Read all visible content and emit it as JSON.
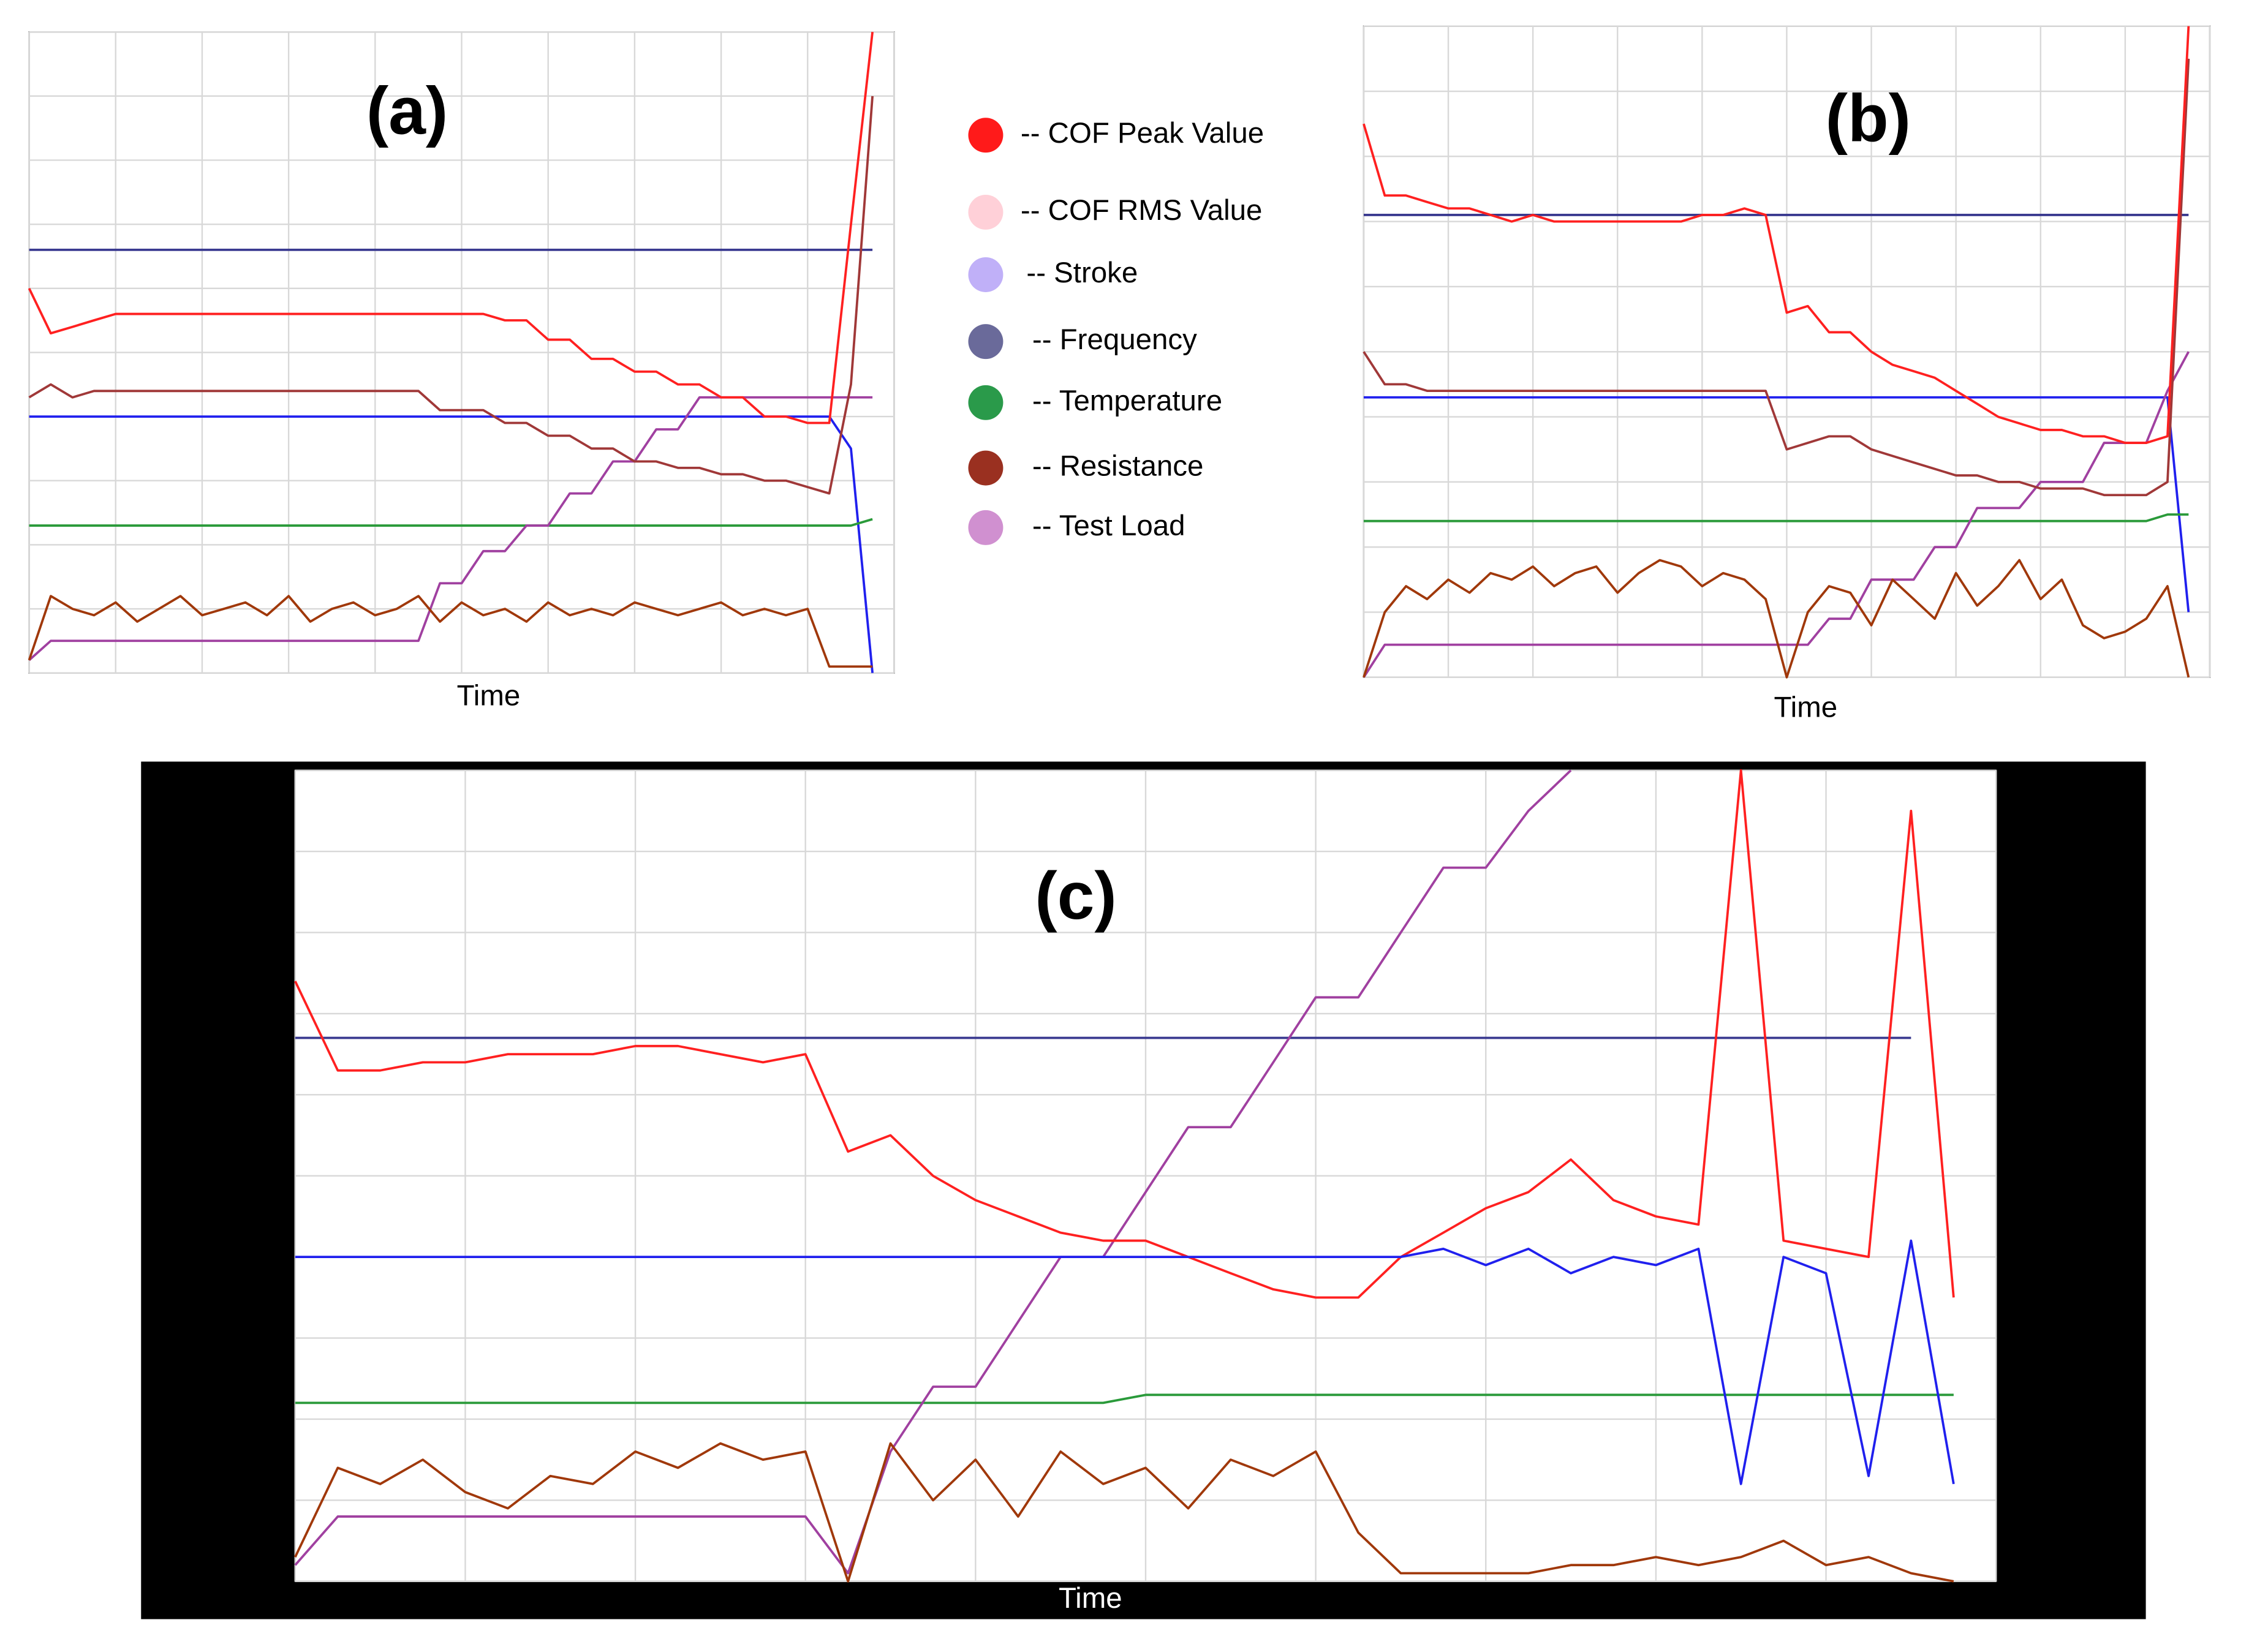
{
  "chart_data": [
    {
      "type": "line",
      "title": "(a)",
      "xlabel": "Time",
      "x": [
        0,
        2.5,
        5,
        7.5,
        10,
        12.5,
        15,
        17.5,
        20,
        22.5,
        25,
        27.5,
        30,
        32.5,
        35,
        37.5,
        40,
        42.5,
        45,
        47.5,
        50,
        52.5,
        55,
        57.5,
        60,
        62.5,
        65,
        67.5,
        70,
        72.5,
        75,
        77.5,
        80,
        82.5,
        85,
        87.5,
        90,
        92.5,
        95,
        97.5,
        100
      ],
      "xlim": [
        0,
        100
      ],
      "ylim": [
        0,
        100
      ],
      "xticks": [
        0,
        10,
        20,
        30,
        40,
        50,
        60,
        70,
        80,
        90,
        100
      ],
      "yticks": [
        0,
        10,
        20,
        30,
        40,
        50,
        60,
        70,
        80,
        90,
        100
      ],
      "grid": true,
      "series": [
        {
          "color": "#3a3a90",
          "values": [
            66,
            66,
            66,
            66,
            66,
            66,
            66,
            66,
            66,
            66,
            66,
            66,
            66,
            66,
            66,
            66,
            66,
            66,
            66,
            66,
            66,
            66,
            66,
            66,
            66,
            66,
            66,
            66,
            66,
            66,
            66,
            66,
            66,
            66,
            66,
            66,
            66,
            66,
            66,
            66,
            null
          ]
        },
        {
          "color": "#2020ee",
          "values": [
            40,
            40,
            40,
            40,
            40,
            40,
            40,
            40,
            40,
            40,
            40,
            40,
            40,
            40,
            40,
            40,
            40,
            40,
            40,
            40,
            40,
            40,
            40,
            40,
            40,
            40,
            40,
            40,
            40,
            40,
            40,
            40,
            40,
            40,
            40,
            40,
            40,
            40,
            35,
            0,
            null
          ]
        },
        {
          "color": "#2a9a3a",
          "values": [
            23,
            23,
            23,
            23,
            23,
            23,
            23,
            23,
            23,
            23,
            23,
            23,
            23,
            23,
            23,
            23,
            23,
            23,
            23,
            23,
            23,
            23,
            23,
            23,
            23,
            23,
            23,
            23,
            23,
            23,
            23,
            23,
            23,
            23,
            23,
            23,
            23,
            23,
            23,
            24,
            null
          ]
        },
        {
          "color": "#a040a0",
          "values": [
            2,
            5,
            5,
            5,
            5,
            5,
            5,
            5,
            5,
            5,
            5,
            5,
            5,
            5,
            5,
            5,
            5,
            5,
            5,
            14,
            14,
            19,
            19,
            23,
            23,
            28,
            28,
            33,
            33,
            38,
            38,
            43,
            43,
            43,
            43,
            43,
            43,
            43,
            43,
            43,
            null
          ]
        },
        {
          "color": "#a0380a",
          "values": [
            2,
            12,
            10,
            9,
            11,
            8,
            10,
            12,
            9,
            10,
            11,
            9,
            12,
            8,
            10,
            11,
            9,
            10,
            12,
            8,
            11,
            9,
            10,
            8,
            11,
            9,
            10,
            9,
            11,
            10,
            9,
            10,
            11,
            9,
            10,
            9,
            10,
            1,
            1,
            1,
            null
          ]
        },
        {
          "color": "#a03838",
          "values": [
            43,
            45,
            43,
            44,
            44,
            44,
            44,
            44,
            44,
            44,
            44,
            44,
            44,
            44,
            44,
            44,
            44,
            44,
            44,
            41,
            41,
            41,
            39,
            39,
            37,
            37,
            35,
            35,
            33,
            33,
            32,
            32,
            31,
            31,
            30,
            30,
            29,
            28,
            45,
            90,
            null
          ]
        },
        {
          "color": "#ff2020",
          "values": [
            60,
            53,
            54,
            55,
            56,
            56,
            56,
            56,
            56,
            56,
            56,
            56,
            56,
            56,
            56,
            56,
            56,
            56,
            56,
            56,
            56,
            56,
            55,
            55,
            52,
            52,
            49,
            49,
            47,
            47,
            45,
            45,
            43,
            43,
            40,
            40,
            39,
            39,
            70,
            100,
            null
          ]
        }
      ]
    },
    {
      "type": "line",
      "title": "(b)",
      "xlabel": "Time",
      "x": [
        0,
        2.5,
        5,
        7.5,
        10,
        12.5,
        15,
        17.5,
        20,
        22.5,
        25,
        27.5,
        30,
        32.5,
        35,
        37.5,
        40,
        42.5,
        45,
        47.5,
        50,
        52.5,
        55,
        57.5,
        60,
        62.5,
        65,
        67.5,
        70,
        72.5,
        75,
        77.5,
        80,
        82.5,
        85,
        87.5,
        90,
        92.5,
        95,
        97.5,
        100
      ],
      "xlim": [
        0,
        100
      ],
      "ylim": [
        0,
        100
      ],
      "xticks": [
        0,
        10,
        20,
        30,
        40,
        50,
        60,
        70,
        80,
        90,
        100
      ],
      "yticks": [
        0,
        10,
        20,
        30,
        40,
        50,
        60,
        70,
        80,
        90,
        100
      ],
      "grid": true,
      "series": [
        {
          "color": "#3a3a90",
          "values": [
            71,
            71,
            71,
            71,
            71,
            71,
            71,
            71,
            71,
            71,
            71,
            71,
            71,
            71,
            71,
            71,
            71,
            71,
            71,
            71,
            71,
            71,
            71,
            71,
            71,
            71,
            71,
            71,
            71,
            71,
            71,
            71,
            71,
            71,
            71,
            71,
            71,
            71,
            71,
            71,
            null
          ]
        },
        {
          "color": "#2020ee",
          "values": [
            43,
            43,
            43,
            43,
            43,
            43,
            43,
            43,
            43,
            43,
            43,
            43,
            43,
            43,
            43,
            43,
            43,
            43,
            43,
            43,
            43,
            43,
            43,
            43,
            43,
            43,
            43,
            43,
            43,
            43,
            43,
            43,
            43,
            43,
            43,
            43,
            43,
            43,
            43,
            10,
            null
          ]
        },
        {
          "color": "#2a9a3a",
          "values": [
            24,
            24,
            24,
            24,
            24,
            24,
            24,
            24,
            24,
            24,
            24,
            24,
            24,
            24,
            24,
            24,
            24,
            24,
            24,
            24,
            24,
            24,
            24,
            24,
            24,
            24,
            24,
            24,
            24,
            24,
            24,
            24,
            24,
            24,
            24,
            24,
            24,
            24,
            25,
            25,
            null
          ]
        },
        {
          "color": "#a040a0",
          "values": [
            0,
            5,
            5,
            5,
            5,
            5,
            5,
            5,
            5,
            5,
            5,
            5,
            5,
            5,
            5,
            5,
            5,
            5,
            5,
            5,
            5,
            5,
            9,
            9,
            15,
            15,
            15,
            20,
            20,
            26,
            26,
            26,
            30,
            30,
            30,
            36,
            36,
            36,
            44,
            50,
            null
          ]
        },
        {
          "color": "#a0380a",
          "values": [
            0,
            10,
            14,
            12,
            15,
            13,
            16,
            15,
            17,
            14,
            16,
            17,
            13,
            16,
            18,
            17,
            14,
            16,
            15,
            12,
            0,
            10,
            14,
            13,
            8,
            15,
            12,
            9,
            16,
            11,
            14,
            18,
            12,
            15,
            8,
            6,
            7,
            9,
            14,
            0,
            null
          ]
        },
        {
          "color": "#a03838",
          "values": [
            50,
            45,
            45,
            44,
            44,
            44,
            44,
            44,
            44,
            44,
            44,
            44,
            44,
            44,
            44,
            44,
            44,
            44,
            44,
            44,
            35,
            36,
            37,
            37,
            35,
            34,
            33,
            32,
            31,
            31,
            30,
            30,
            29,
            29,
            29,
            28,
            28,
            28,
            30,
            95,
            null
          ]
        },
        {
          "color": "#ff2020",
          "values": [
            85,
            74,
            74,
            73,
            72,
            72,
            71,
            70,
            71,
            70,
            70,
            70,
            70,
            70,
            70,
            70,
            71,
            71,
            72,
            71,
            56,
            57,
            53,
            53,
            50,
            48,
            47,
            46,
            44,
            42,
            40,
            39,
            38,
            38,
            37,
            37,
            36,
            36,
            37,
            100,
            null
          ]
        }
      ]
    },
    {
      "type": "line",
      "title": "(c)",
      "xlabel": "Time",
      "x": [
        0,
        2.5,
        5,
        7.5,
        10,
        12.5,
        15,
        17.5,
        20,
        22.5,
        25,
        27.5,
        30,
        32.5,
        35,
        37.5,
        40,
        42.5,
        45,
        47.5,
        50,
        52.5,
        55,
        57.5,
        60,
        62.5,
        65,
        67.5,
        70,
        72.5,
        75,
        77.5,
        80,
        82.5,
        85,
        87.5,
        90,
        92.5,
        95,
        97.5,
        100
      ],
      "xlim": [
        0,
        100
      ],
      "ylim": [
        0,
        100
      ],
      "xticks": [
        0,
        10,
        20,
        30,
        40,
        50,
        60,
        70,
        80,
        90,
        100
      ],
      "yticks": [
        0,
        10,
        20,
        30,
        40,
        50,
        60,
        70,
        80,
        90,
        100
      ],
      "grid": true,
      "series": [
        {
          "color": "#3a3a90",
          "values": [
            67,
            67,
            67,
            67,
            67,
            67,
            67,
            67,
            67,
            67,
            67,
            67,
            67,
            67,
            67,
            67,
            67,
            67,
            67,
            67,
            67,
            67,
            67,
            67,
            67,
            67,
            67,
            67,
            67,
            67,
            67,
            67,
            67,
            67,
            67,
            67,
            67,
            67,
            67,
            null,
            null
          ]
        },
        {
          "color": "#2a9a3a",
          "values": [
            22,
            22,
            22,
            22,
            22,
            22,
            22,
            22,
            22,
            22,
            22,
            22,
            22,
            22,
            22,
            22,
            22,
            22,
            22,
            22,
            23,
            23,
            23,
            23,
            23,
            23,
            23,
            23,
            23,
            23,
            23,
            23,
            23,
            23,
            23,
            23,
            23,
            23,
            23,
            23,
            null
          ]
        },
        {
          "color": "#a040a0",
          "values": [
            2,
            8,
            8,
            8,
            8,
            8,
            8,
            8,
            8,
            8,
            8,
            8,
            8,
            1,
            16,
            24,
            24,
            32,
            40,
            40,
            48,
            56,
            56,
            64,
            72,
            72,
            80,
            88,
            88,
            95,
            100,
            null,
            null,
            null,
            null,
            null,
            null,
            null,
            null,
            null,
            null
          ]
        },
        {
          "color": "#a0380a",
          "values": [
            3,
            14,
            12,
            15,
            11,
            9,
            13,
            12,
            16,
            14,
            17,
            15,
            16,
            0,
            17,
            10,
            15,
            8,
            16,
            12,
            14,
            9,
            15,
            13,
            16,
            6,
            1,
            1,
            1,
            1,
            2,
            2,
            3,
            2,
            3,
            5,
            2,
            3,
            1,
            0,
            null
          ]
        },
        {
          "color": "#ff2020",
          "values": [
            74,
            63,
            63,
            64,
            64,
            65,
            65,
            65,
            66,
            66,
            65,
            64,
            65,
            53,
            55,
            50,
            47,
            45,
            43,
            42,
            42,
            40,
            38,
            36,
            35,
            35,
            40,
            43,
            46,
            48,
            52,
            47,
            45,
            44,
            100,
            42,
            41,
            40,
            95,
            35,
            null
          ]
        },
        {
          "color": "#2020ee",
          "values": [
            40,
            40,
            40,
            40,
            40,
            40,
            40,
            40,
            40,
            40,
            40,
            40,
            40,
            40,
            40,
            40,
            40,
            40,
            40,
            40,
            40,
            40,
            40,
            40,
            40,
            40,
            40,
            41,
            39,
            41,
            38,
            40,
            39,
            41,
            12,
            40,
            38,
            13,
            42,
            12,
            null
          ]
        }
      ]
    }
  ],
  "legend": [
    {
      "name": "-- COF Peak Value",
      "color": "#ff1a1a"
    },
    {
      "name": "-- COF RMS Value",
      "color": "#ffd0d8"
    },
    {
      "name": "-- Stroke",
      "color": "#c0b0f8"
    },
    {
      "name": "-- Frequency",
      "color": "#6a6a9a"
    },
    {
      "name": "-- Temperature",
      "color": "#2a9a4a"
    },
    {
      "name": "-- Resistance",
      "color": "#9a3020"
    },
    {
      "name": "-- Test Load",
      "color": "#d090d0"
    }
  ]
}
